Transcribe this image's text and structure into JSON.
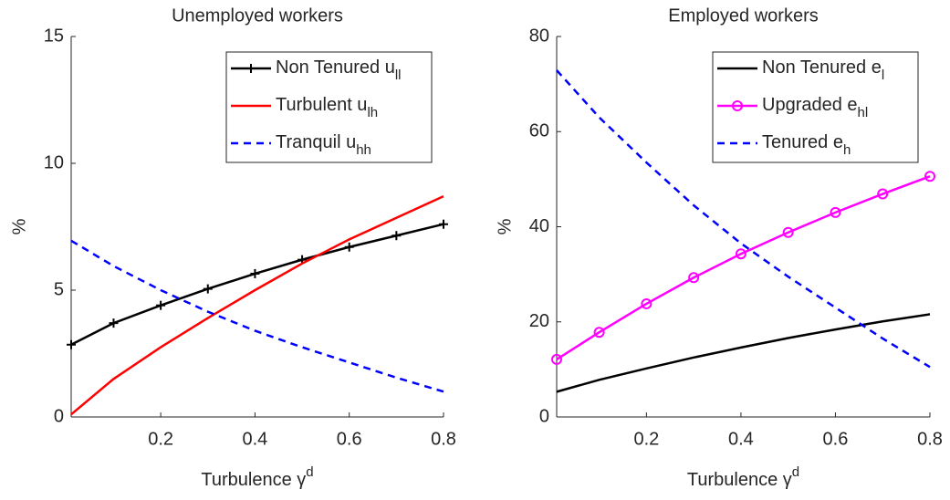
{
  "chart_data": [
    {
      "type": "line",
      "title": "Unemployed workers",
      "ylabel": "%",
      "xlabel": "Turbulence γ",
      "xlabel_sup": "d",
      "x": [
        0.01,
        0.1,
        0.2,
        0.3,
        0.4,
        0.5,
        0.6,
        0.7,
        0.8
      ],
      "xlim": [
        0.01,
        0.8
      ],
      "xticks": [
        0.2,
        0.4,
        0.6,
        0.8
      ],
      "ylim": [
        0,
        15
      ],
      "yticks": [
        0,
        5,
        10,
        15
      ],
      "legend": "northeast",
      "series": [
        {
          "name": "Non Tenured u",
          "subscript": "ll",
          "color": "#000000",
          "marker": "+",
          "linestyle": "-",
          "values": [
            2.85,
            3.7,
            4.4,
            5.05,
            5.65,
            6.2,
            6.7,
            7.15,
            7.6
          ]
        },
        {
          "name": "Turbulent u",
          "subscript": "lh",
          "color": "#ff0000",
          "linestyle": "-",
          "values": [
            0.1,
            1.5,
            2.75,
            3.9,
            5.0,
            6.05,
            7.0,
            7.85,
            8.7
          ]
        },
        {
          "name": "Tranquil u",
          "subscript": "hh",
          "color": "#0000ff",
          "linestyle": "--",
          "values": [
            6.95,
            5.95,
            5.0,
            4.15,
            3.4,
            2.75,
            2.15,
            1.55,
            1.0
          ]
        }
      ]
    },
    {
      "type": "line",
      "title": "Employed workers",
      "ylabel": "%",
      "xlabel": "Turbulence γ",
      "xlabel_sup": "d",
      "x": [
        0.01,
        0.1,
        0.2,
        0.3,
        0.4,
        0.5,
        0.6,
        0.7,
        0.8
      ],
      "xlim": [
        0.01,
        0.8
      ],
      "xticks": [
        0.2,
        0.4,
        0.6,
        0.8
      ],
      "ylim": [
        0,
        80
      ],
      "yticks": [
        0,
        20,
        40,
        60,
        80
      ],
      "legend": "northeast",
      "series": [
        {
          "name": "Non Tenured e",
          "subscript": "l",
          "color": "#000000",
          "linestyle": "-",
          "values": [
            5.3,
            7.8,
            10.2,
            12.5,
            14.6,
            16.6,
            18.4,
            20.1,
            21.6
          ]
        },
        {
          "name": "Upgraded e",
          "subscript": "hl",
          "color": "#ff00ff",
          "marker": "o",
          "linestyle": "-",
          "values": [
            12.1,
            17.8,
            23.8,
            29.3,
            34.3,
            38.8,
            43.0,
            46.9,
            50.6
          ]
        },
        {
          "name": "Tenured e",
          "subscript": "h",
          "color": "#0000ff",
          "linestyle": "--",
          "values": [
            72.9,
            63,
            53.5,
            44.5,
            36.5,
            29.5,
            23,
            16.5,
            10.5
          ]
        }
      ]
    }
  ]
}
